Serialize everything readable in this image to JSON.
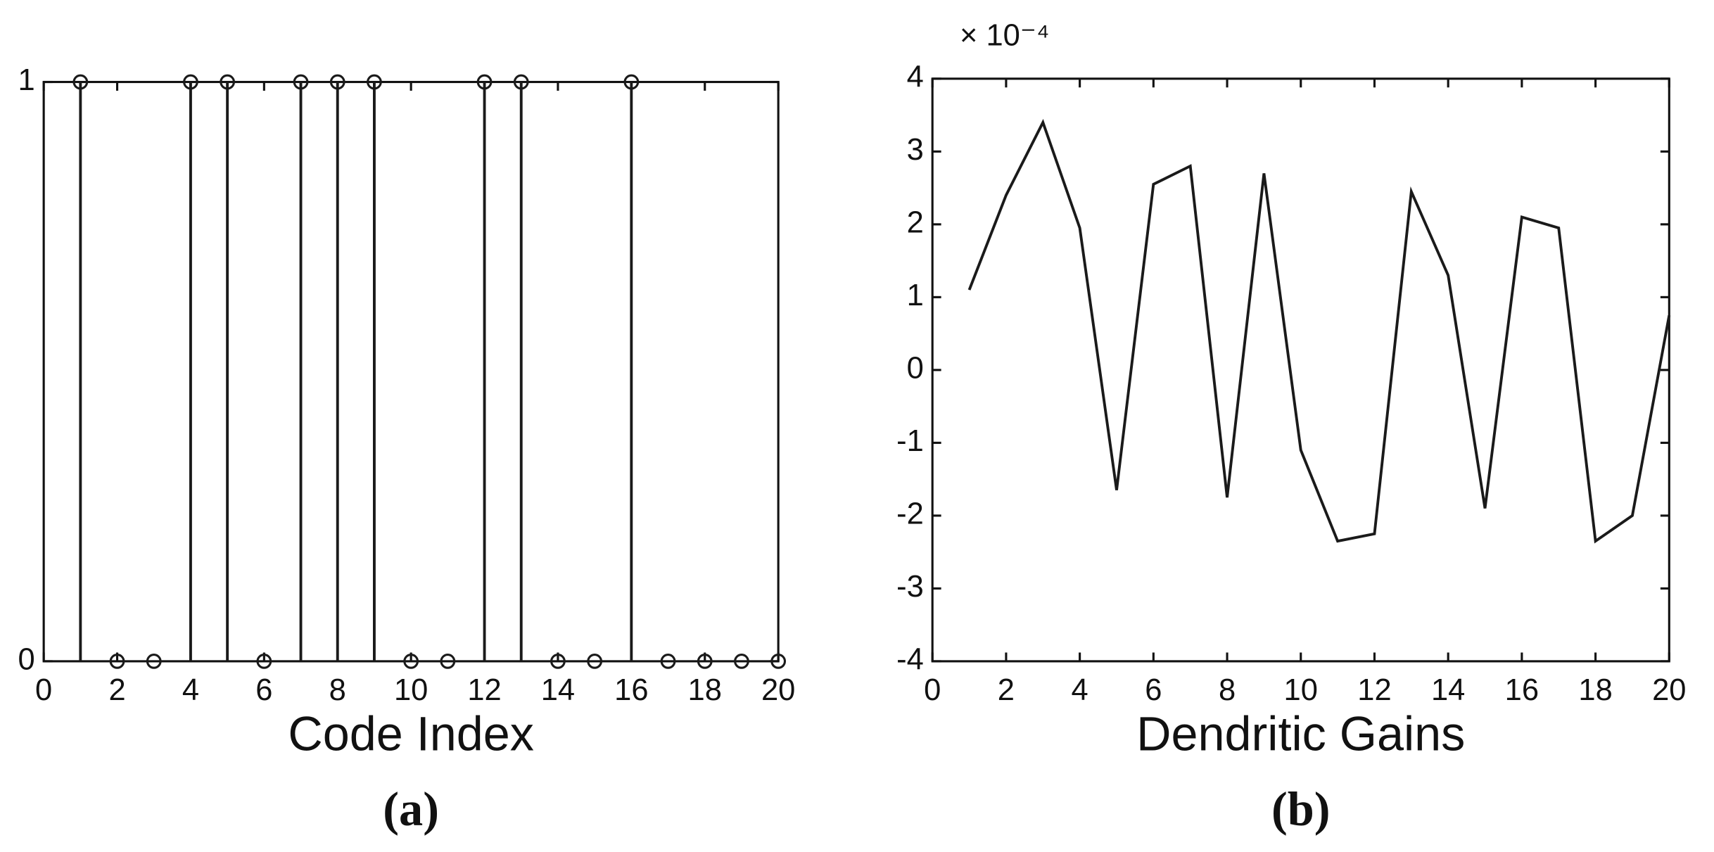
{
  "chart_data": [
    {
      "type": "stem",
      "xlabel": "Code Index",
      "caption": "(a)",
      "x": [
        1,
        2,
        3,
        4,
        5,
        6,
        7,
        8,
        9,
        10,
        11,
        12,
        13,
        14,
        15,
        16,
        17,
        18,
        19,
        20
      ],
      "values": [
        1,
        0,
        0,
        1,
        1,
        0,
        1,
        1,
        1,
        0,
        0,
        1,
        1,
        0,
        0,
        1,
        0,
        0,
        0,
        0
      ],
      "color": "#1a1a1a",
      "xlim": [
        0,
        20
      ],
      "xticks": [
        0,
        2,
        4,
        6,
        8,
        10,
        12,
        14,
        16,
        18,
        20
      ],
      "ylim": [
        0,
        1
      ],
      "yticks": [
        0,
        1
      ],
      "grid": false
    },
    {
      "type": "line",
      "xlabel": "Dendritic Gains",
      "caption": "(b)",
      "multiplier": "× 10⁻⁴",
      "x": [
        1,
        2,
        3,
        4,
        5,
        6,
        7,
        8,
        9,
        10,
        11,
        12,
        13,
        14,
        15,
        16,
        17,
        18,
        19,
        20
      ],
      "values": [
        1.1,
        2.4,
        3.4,
        1.95,
        -1.65,
        2.55,
        2.8,
        -1.75,
        2.7,
        -1.1,
        -2.35,
        -2.25,
        2.45,
        1.3,
        -1.9,
        2.1,
        1.95,
        -2.35,
        -2.0,
        0.75
      ],
      "color": "#1a1a1a",
      "xlim": [
        0,
        20
      ],
      "xticks": [
        0,
        2,
        4,
        6,
        8,
        10,
        12,
        14,
        16,
        18,
        20
      ],
      "ylim": [
        -4,
        4
      ],
      "yticks": [
        -4,
        -3,
        -2,
        -1,
        0,
        1,
        2,
        3,
        4
      ],
      "grid": false
    }
  ]
}
